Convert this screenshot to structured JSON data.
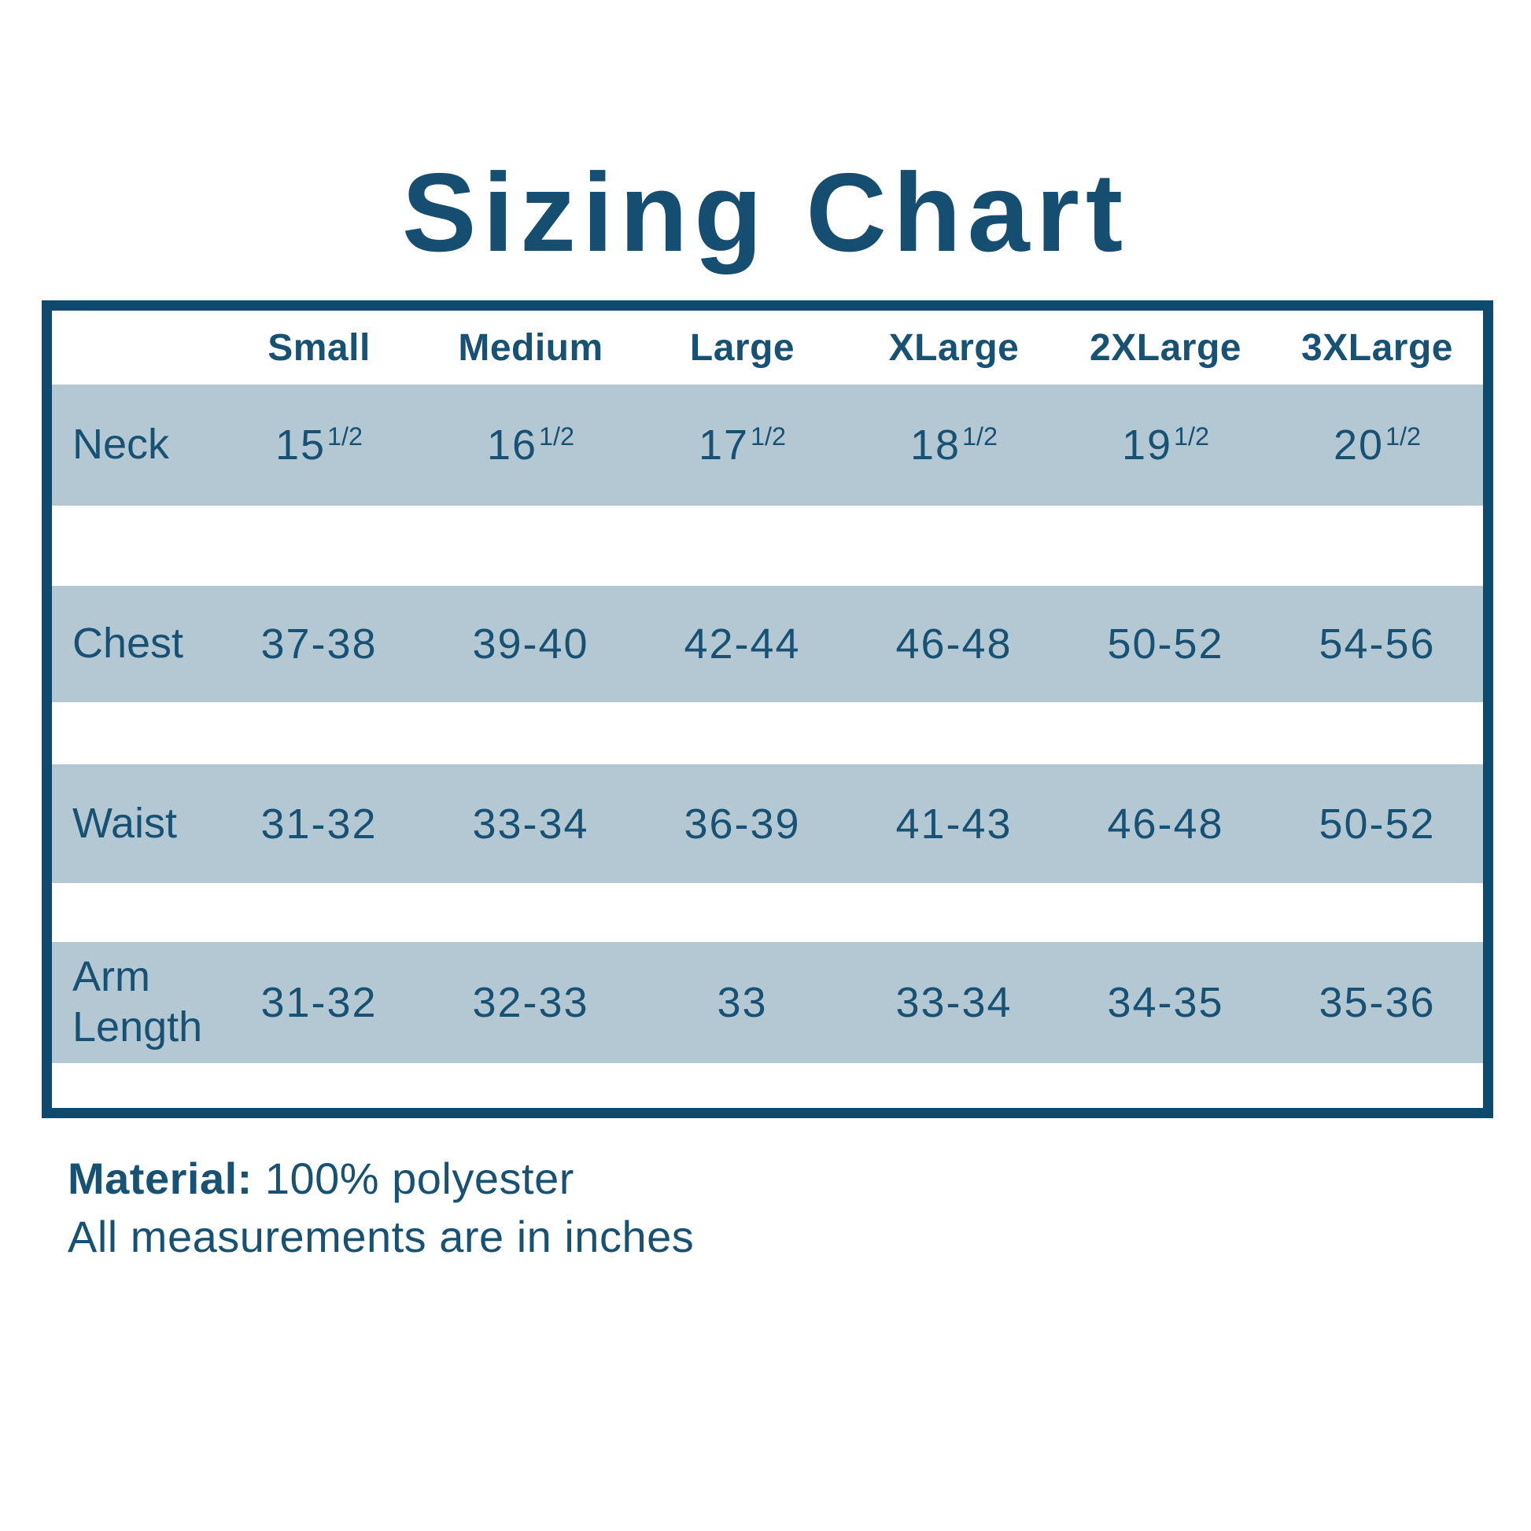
{
  "title": "Sizing Chart",
  "chart_data": {
    "type": "table",
    "title": "Sizing Chart",
    "columns": [
      "Small",
      "Medium",
      "Large",
      "XLarge",
      "2XLarge",
      "3XLarge"
    ],
    "rows": [
      {
        "label": "Neck",
        "values": [
          "15 1/2",
          "16 1/2",
          "17 1/2",
          "18 1/2",
          "19 1/2",
          "20 1/2"
        ]
      },
      {
        "label": "Chest",
        "values": [
          "37-38",
          "39-40",
          "42-44",
          "46-48",
          "50-52",
          "54-56"
        ]
      },
      {
        "label": "Waist",
        "values": [
          "31-32",
          "33-34",
          "36-39",
          "41-43",
          "46-48",
          "50-52"
        ]
      },
      {
        "label": "Arm Length",
        "values": [
          "31-32",
          "32-33",
          "33",
          "33-34",
          "34-35",
          "35-36"
        ]
      }
    ],
    "notes": [
      "Material: 100% polyester",
      "All measurements are in inches"
    ]
  },
  "fractions": {
    "neck": [
      {
        "whole": "15",
        "frac": "1/2"
      },
      {
        "whole": "16",
        "frac": "1/2"
      },
      {
        "whole": "17",
        "frac": "1/2"
      },
      {
        "whole": "18",
        "frac": "1/2"
      },
      {
        "whole": "19",
        "frac": "1/2"
      },
      {
        "whole": "20",
        "frac": "1/2"
      }
    ]
  },
  "footer": {
    "material_label": "Material:",
    "material_value": "100% polyester",
    "measurements_note": "All measurements are in inches"
  },
  "colors": {
    "text_blue": "#175174",
    "title_blue": "#164e71",
    "border_blue": "#0d4a6f",
    "band_blue": "#b3c8d3",
    "background": "#ffffff"
  }
}
